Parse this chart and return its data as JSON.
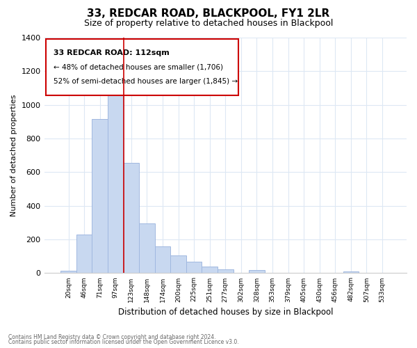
{
  "title": "33, REDCAR ROAD, BLACKPOOL, FY1 2LR",
  "subtitle": "Size of property relative to detached houses in Blackpool",
  "xlabel": "Distribution of detached houses by size in Blackpool",
  "ylabel": "Number of detached properties",
  "bar_color": "#c8d8f0",
  "bar_edge_color": "#a0b8e0",
  "categories": [
    "20sqm",
    "46sqm",
    "71sqm",
    "97sqm",
    "123sqm",
    "148sqm",
    "174sqm",
    "200sqm",
    "225sqm",
    "251sqm",
    "277sqm",
    "302sqm",
    "328sqm",
    "353sqm",
    "379sqm",
    "405sqm",
    "430sqm",
    "456sqm",
    "482sqm",
    "507sqm",
    "533sqm"
  ],
  "values": [
    15,
    228,
    918,
    1082,
    655,
    295,
    158,
    107,
    70,
    38,
    22,
    0,
    18,
    0,
    0,
    0,
    0,
    0,
    10,
    0,
    0
  ],
  "ylim": [
    0,
    1400
  ],
  "yticks": [
    0,
    200,
    400,
    600,
    800,
    1000,
    1200,
    1400
  ],
  "annotation_text_line1": "33 REDCAR ROAD: 112sqm",
  "annotation_text_line2": "← 48% of detached houses are smaller (1,706)",
  "annotation_text_line3": "52% of semi-detached houses are larger (1,845) →",
  "property_line_x": 3.5,
  "footnote1": "Contains HM Land Registry data © Crown copyright and database right 2024.",
  "footnote2": "Contains public sector information licensed under the Open Government Licence v3.0.",
  "background_color": "#ffffff",
  "grid_color": "#dde8f4",
  "vline_color": "#cc0000",
  "ann_box_edge_color": "#cc0000"
}
